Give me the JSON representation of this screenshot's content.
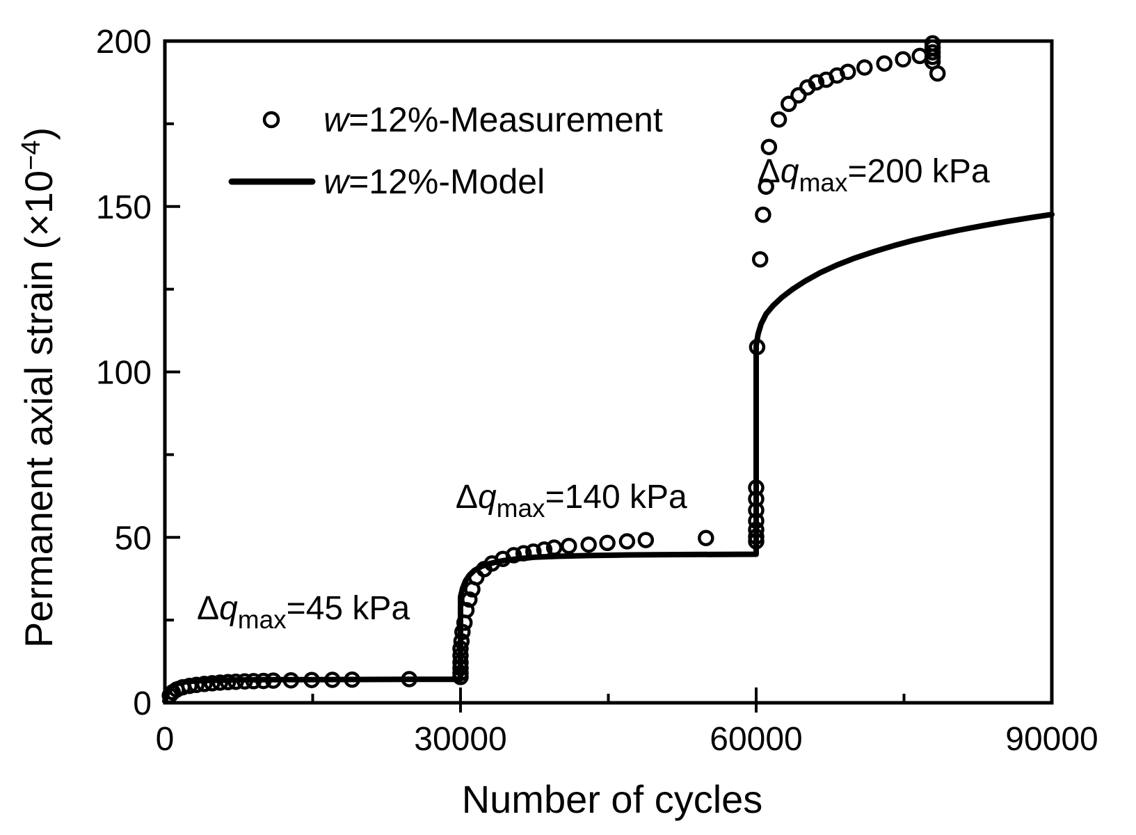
{
  "figure": {
    "background_color": "#ffffff",
    "ink_color": "#000000"
  },
  "chart_data": {
    "type": "scatter",
    "title": "",
    "xlabel": "Number of cycles",
    "ylabel_parts": {
      "pre": "Permanent axial strain (×10",
      "sup": "−4",
      "post": ")"
    },
    "xlim": [
      0,
      90000
    ],
    "ylim": [
      0,
      200
    ],
    "x_major_ticks": [
      0,
      30000,
      60000,
      90000
    ],
    "x_major_tick_labels": [
      "0",
      "30000",
      "60000",
      "90000"
    ],
    "x_minor_ticks": [
      15000,
      45000,
      75000
    ],
    "y_major_ticks": [
      0,
      50,
      100,
      150,
      200
    ],
    "y_major_tick_labels": [
      "0",
      "50",
      "100",
      "150",
      "200"
    ],
    "y_minor_ticks": [
      25,
      75,
      125,
      175
    ],
    "grid": false,
    "legend_position": "upper-left-inside",
    "legend": [
      {
        "marker": "circle",
        "label_italic": "w",
        "label_rest": "=12%-Measurement"
      },
      {
        "marker": "line",
        "label_italic": "w",
        "label_rest": "=12%-Model"
      }
    ],
    "annotations": [
      {
        "delta": "Δ",
        "q": "q",
        "sub": "max",
        "rest": "=45 kPa",
        "x": 3250,
        "y": 25.2
      },
      {
        "delta": "Δ",
        "q": "q",
        "sub": "max",
        "rest": "=140 kPa",
        "x": 29500,
        "y": 58.9
      },
      {
        "delta": "Δ",
        "q": "q",
        "sub": "max",
        "rest": "=200 kPa",
        "x": 60200,
        "y": 157.3
      }
    ],
    "series": [
      {
        "name": "w=12%-Measurement",
        "style": "open-circle",
        "points": [
          [
            500,
            2.2
          ],
          [
            800,
            3.2
          ],
          [
            1200,
            4.0
          ],
          [
            1800,
            4.7
          ],
          [
            2500,
            5.1
          ],
          [
            3200,
            5.4
          ],
          [
            4000,
            5.7
          ],
          [
            4800,
            5.9
          ],
          [
            5600,
            6.1
          ],
          [
            6400,
            6.25
          ],
          [
            7200,
            6.35
          ],
          [
            8100,
            6.45
          ],
          [
            9000,
            6.55
          ],
          [
            10000,
            6.6
          ],
          [
            11000,
            6.7
          ],
          [
            12800,
            6.8
          ],
          [
            14900,
            6.9
          ],
          [
            17000,
            6.95
          ],
          [
            19000,
            7.0
          ],
          [
            24800,
            7.15
          ],
          [
            30000,
            7.8
          ],
          [
            30000,
            9.0
          ],
          [
            30000,
            10.5
          ],
          [
            30000,
            12.2
          ],
          [
            30000,
            14.3
          ],
          [
            30000,
            16.4
          ],
          [
            30100,
            18.6
          ],
          [
            30200,
            21.4
          ],
          [
            30400,
            24.2
          ],
          [
            30600,
            28.0
          ],
          [
            30900,
            31.2
          ],
          [
            31200,
            34.3
          ],
          [
            31600,
            37.9
          ],
          [
            32400,
            40.4
          ],
          [
            33200,
            42.1
          ],
          [
            34300,
            43.5
          ],
          [
            35400,
            44.6
          ],
          [
            36400,
            45.2
          ],
          [
            37400,
            45.7
          ],
          [
            38500,
            46.3
          ],
          [
            39500,
            46.9
          ],
          [
            41000,
            47.4
          ],
          [
            43000,
            47.8
          ],
          [
            44900,
            48.3
          ],
          [
            46900,
            48.8
          ],
          [
            48800,
            49.2
          ],
          [
            54900,
            49.8
          ],
          [
            60000,
            48.8
          ],
          [
            60000,
            50.2
          ],
          [
            60000,
            52.3
          ],
          [
            60000,
            55.0
          ],
          [
            60000,
            58.2
          ],
          [
            60000,
            61.6
          ],
          [
            60000,
            65.0
          ],
          [
            60100,
            107.5
          ],
          [
            60400,
            134.0
          ],
          [
            60700,
            147.5
          ],
          [
            61000,
            156.0
          ],
          [
            61300,
            168.0
          ],
          [
            62300,
            176.3
          ],
          [
            63300,
            181.0
          ],
          [
            64300,
            183.6
          ],
          [
            65200,
            186.0
          ],
          [
            66100,
            187.5
          ],
          [
            67100,
            188.3
          ],
          [
            68200,
            189.6
          ],
          [
            69300,
            190.7
          ],
          [
            71000,
            192.0
          ],
          [
            73000,
            193.2
          ],
          [
            74900,
            194.5
          ],
          [
            76600,
            195.5
          ],
          [
            77900,
            193.8
          ],
          [
            77900,
            195.2
          ],
          [
            77900,
            196.6
          ],
          [
            77900,
            198.0
          ],
          [
            77900,
            199.3
          ],
          [
            78400,
            190.2
          ]
        ]
      },
      {
        "name": "w=12%-Model",
        "style": "thick-line",
        "points": [
          [
            0,
            0.5
          ],
          [
            150,
            2.0
          ],
          [
            400,
            3.8
          ],
          [
            700,
            4.9
          ],
          [
            1000,
            5.5
          ],
          [
            1500,
            6.0
          ],
          [
            2000,
            6.3
          ],
          [
            3000,
            6.6
          ],
          [
            4500,
            6.8
          ],
          [
            7000,
            6.9
          ],
          [
            10000,
            7.0
          ],
          [
            15000,
            7.0
          ],
          [
            20000,
            7.05
          ],
          [
            25000,
            7.1
          ],
          [
            30000,
            7.1
          ],
          [
            30000,
            32.0
          ],
          [
            30200,
            34.5
          ],
          [
            30500,
            36.8
          ],
          [
            30900,
            38.6
          ],
          [
            31400,
            40.0
          ],
          [
            32100,
            41.2
          ],
          [
            33000,
            42.1
          ],
          [
            34200,
            42.9
          ],
          [
            35700,
            43.5
          ],
          [
            37500,
            44.0
          ],
          [
            40000,
            44.3
          ],
          [
            43000,
            44.5
          ],
          [
            47000,
            44.7
          ],
          [
            52000,
            44.8
          ],
          [
            60000,
            44.9
          ],
          [
            60000,
            108.0
          ],
          [
            60200,
            111.5
          ],
          [
            60500,
            114.5
          ],
          [
            61000,
            117.5
          ],
          [
            61700,
            120.0
          ],
          [
            62600,
            122.5
          ],
          [
            63700,
            125.0
          ],
          [
            65000,
            127.5
          ],
          [
            66500,
            130.0
          ],
          [
            68200,
            132.3
          ],
          [
            70000,
            134.4
          ],
          [
            72000,
            136.4
          ],
          [
            74000,
            138.2
          ],
          [
            76000,
            139.8
          ],
          [
            78000,
            141.2
          ],
          [
            80500,
            142.8
          ],
          [
            83000,
            144.2
          ],
          [
            85500,
            145.5
          ],
          [
            88000,
            146.7
          ],
          [
            90000,
            147.6
          ]
        ]
      }
    ]
  }
}
